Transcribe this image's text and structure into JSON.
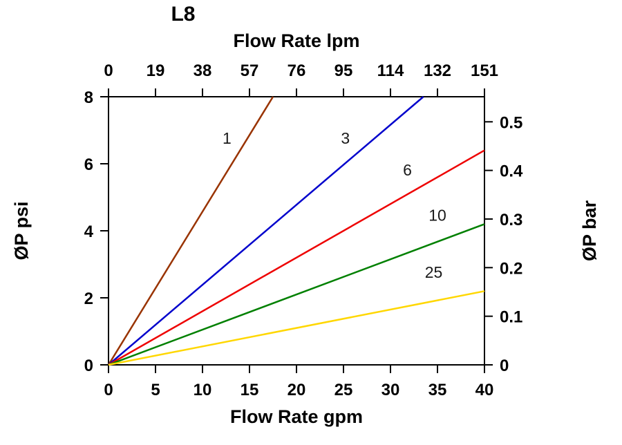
{
  "chart_data": {
    "type": "line",
    "title": "L8",
    "grid": false,
    "legend": "inline-labels",
    "top_axis": {
      "label": "Flow Rate lpm",
      "ticks": [
        "0",
        "19",
        "38",
        "57",
        "76",
        "95",
        "114",
        "132",
        "151"
      ]
    },
    "bottom_axis": {
      "label": "Flow Rate gpm",
      "ticks": [
        "0",
        "5",
        "10",
        "15",
        "20",
        "25",
        "30",
        "35",
        "40"
      ],
      "range": [
        0,
        40
      ]
    },
    "left_axis": {
      "label": "ØP psi",
      "ticks": [
        "0",
        "2",
        "4",
        "6",
        "8"
      ],
      "range": [
        0,
        8
      ]
    },
    "right_axis": {
      "label": "ØP bar",
      "ticks": [
        "0",
        "0.1",
        "0.2",
        "0.3",
        "0.4",
        "0.5"
      ],
      "psi_per_bar": 14.5038
    },
    "series": [
      {
        "name": "1",
        "color": "#993300",
        "points": [
          [
            0,
            0
          ],
          [
            17.5,
            8
          ]
        ],
        "label_pos": [
          12.6,
          6.6
        ]
      },
      {
        "name": "3",
        "color": "#0000cc",
        "points": [
          [
            0,
            0
          ],
          [
            33.5,
            8
          ]
        ],
        "label_pos": [
          25.2,
          6.6
        ]
      },
      {
        "name": "6",
        "color": "#ee0000",
        "points": [
          [
            0,
            0
          ],
          [
            40,
            6.4
          ]
        ],
        "label_pos": [
          31.8,
          5.65
        ]
      },
      {
        "name": "10",
        "color": "#008000",
        "points": [
          [
            0,
            0
          ],
          [
            40,
            4.2
          ]
        ],
        "label_pos": [
          35.0,
          4.3
        ]
      },
      {
        "name": "25",
        "color": "#ffd700",
        "points": [
          [
            0,
            0
          ],
          [
            40,
            2.2
          ]
        ],
        "label_pos": [
          34.6,
          2.6
        ]
      }
    ]
  }
}
